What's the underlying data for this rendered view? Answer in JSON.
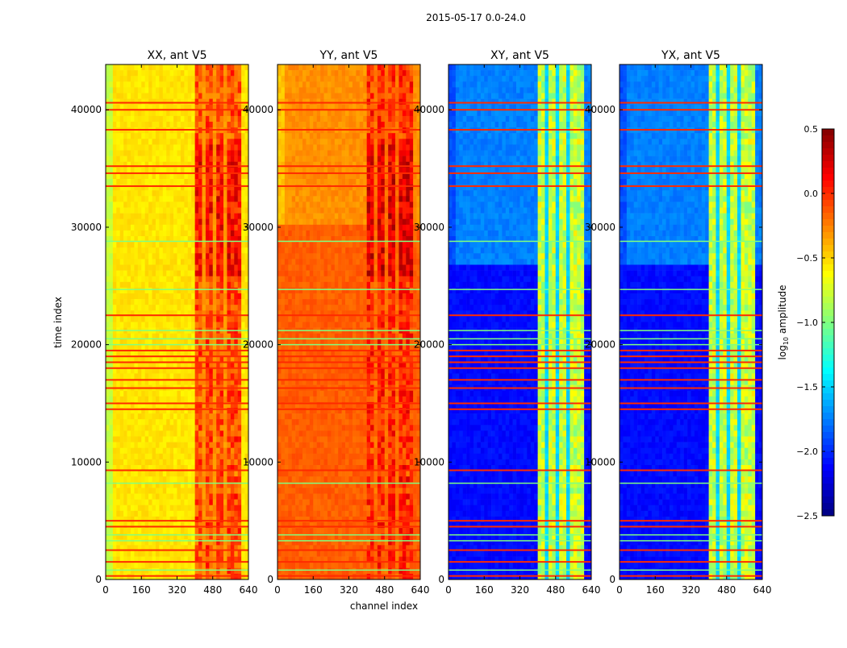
{
  "chart_data": {
    "type": "heatmap",
    "title": "2015-05-17 0.0-24.0",
    "xlabel": "channel index",
    "ylabel": "time index",
    "xlim": [
      0,
      640
    ],
    "ylim": [
      0,
      43860
    ],
    "xticks": [
      0,
      160,
      320,
      480,
      640
    ],
    "yticks": [
      0,
      10000,
      20000,
      30000,
      40000
    ],
    "colorbar": {
      "label": "log10 amplitude",
      "label_main": "log",
      "label_sub": "10",
      "label_rest": " amplitude",
      "range": [
        -2.5,
        0.5
      ],
      "ticks": [
        "0.5",
        "0.0",
        "−0.5",
        "−1.0",
        "−1.5",
        "−2.0",
        "−2.5"
      ],
      "tick_values": [
        0.5,
        0.0,
        -0.5,
        -1.0,
        -1.5,
        -2.0,
        -2.5
      ],
      "colormap": "jet"
    },
    "red_stripe_times": [
      40600,
      40000,
      38300,
      35200,
      34600,
      33500,
      22500,
      19500,
      19000,
      18500,
      18000,
      17000,
      16300,
      15000,
      14500,
      9300,
      5000,
      4500,
      2500,
      1500,
      300
    ],
    "green_stripe_times": [
      28800,
      24700,
      21200,
      20500,
      20000,
      8200,
      3800,
      3300,
      800
    ],
    "panels": [
      {
        "title": "XX, ant V5",
        "base": -0.55,
        "edge": -0.8,
        "low_times": null,
        "low_value": null,
        "band_channels": [
          400,
          600
        ],
        "band_value": 0.1,
        "band_gap_value": -0.3,
        "band_active_from": 0
      },
      {
        "title": "YY, ant V5",
        "base": -0.3,
        "edge": -0.45,
        "low_times": [
          0,
          30000
        ],
        "low_value": -0.15,
        "band_channels": [
          400,
          600
        ],
        "band_value": 0.2,
        "band_gap_value": -0.2,
        "band_active_from": 0
      },
      {
        "title": "XY, ant V5",
        "base": -1.75,
        "edge": -1.9,
        "low_times": [
          0,
          27000
        ],
        "low_value": -2.1,
        "band_channels": [
          400,
          600
        ],
        "band_value": -0.6,
        "band_gap_value": -1.5,
        "band_active_from": 0
      },
      {
        "title": "YX, ant V5",
        "base": -1.75,
        "edge": -1.9,
        "low_times": [
          0,
          27000
        ],
        "low_value": -2.1,
        "band_channels": [
          400,
          600
        ],
        "band_value": -0.6,
        "band_gap_value": -1.5,
        "band_active_from": 0
      }
    ]
  }
}
